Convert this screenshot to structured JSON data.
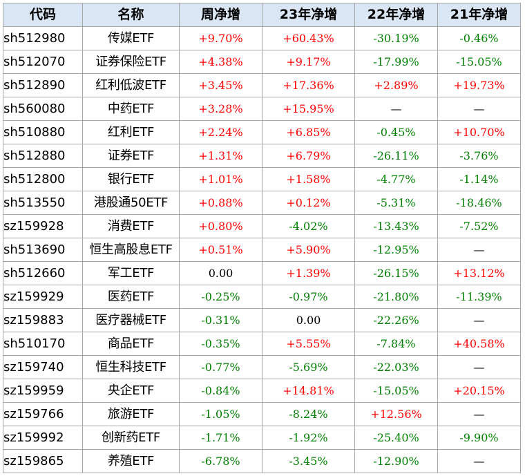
{
  "header": {
    "code": "代码",
    "name": "名称",
    "week": "周净增",
    "y23": "23年净增",
    "y22": "22年净增",
    "y21": "21年净增"
  },
  "colors": {
    "positive": "#ff0000",
    "negative": "#008000",
    "neutral": "#000000",
    "header_bg": "#dbe6f5"
  },
  "rows": [
    {
      "code": "sh512980",
      "name": "传媒ETF",
      "week": "+9.70%",
      "y23": "+60.43%",
      "y22": "-30.19%",
      "y21": "-0.46%"
    },
    {
      "code": "sh512070",
      "name": "证券保险ETF",
      "week": "+4.38%",
      "y23": "+9.17%",
      "y22": "-17.99%",
      "y21": "-15.05%"
    },
    {
      "code": "sh512890",
      "name": "红利低波ETF",
      "week": "+3.45%",
      "y23": "+17.36%",
      "y22": "+2.89%",
      "y21": "+19.73%"
    },
    {
      "code": "sh560080",
      "name": "中药ETF",
      "week": "+3.28%",
      "y23": "+15.95%",
      "y22": "—",
      "y21": "—"
    },
    {
      "code": "sh510880",
      "name": "红利ETF",
      "week": "+2.24%",
      "y23": "+6.85%",
      "y22": "-0.45%",
      "y21": "+10.70%"
    },
    {
      "code": "sh512880",
      "name": "证券ETF",
      "week": "+1.31%",
      "y23": "+6.79%",
      "y22": "-26.11%",
      "y21": "-3.76%"
    },
    {
      "code": "sh512800",
      "name": "银行ETF",
      "week": "+1.01%",
      "y23": "+1.58%",
      "y22": "-4.77%",
      "y21": "-1.14%"
    },
    {
      "code": "sh513550",
      "name": "港股通50ETF",
      "week": "+0.88%",
      "y23": "+0.12%",
      "y22": "-5.31%",
      "y21": "-18.46%"
    },
    {
      "code": "sz159928",
      "name": "消费ETF",
      "week": "+0.80%",
      "y23": "-4.02%",
      "y22": "-13.43%",
      "y21": "-7.52%"
    },
    {
      "code": "sh513690",
      "name": "恒生高股息ETF",
      "week": "+0.51%",
      "y23": "+5.90%",
      "y22": "-12.95%",
      "y21": "—"
    },
    {
      "code": "sh512660",
      "name": "军工ETF",
      "week": "0.00",
      "y23": "+1.39%",
      "y22": "-26.15%",
      "y21": "+13.12%"
    },
    {
      "code": "sz159929",
      "name": "医药ETF",
      "week": "-0.25%",
      "y23": "-0.97%",
      "y22": "-21.80%",
      "y21": "-11.39%"
    },
    {
      "code": "sz159883",
      "name": "医疗器械ETF",
      "week": "-0.31%",
      "y23": "0.00",
      "y22": "-22.26%",
      "y21": "—"
    },
    {
      "code": "sh510170",
      "name": "商品ETF",
      "week": "-0.35%",
      "y23": "+5.55%",
      "y22": "-7.84%",
      "y21": "+40.58%"
    },
    {
      "code": "sz159740",
      "name": "恒生科技ETF",
      "week": "-0.77%",
      "y23": "-5.69%",
      "y22": "-22.03%",
      "y21": "—"
    },
    {
      "code": "sz159959",
      "name": "央企ETF",
      "week": "-0.84%",
      "y23": "+14.81%",
      "y22": "-15.05%",
      "y21": "+20.15%"
    },
    {
      "code": "sz159766",
      "name": "旅游ETF",
      "week": "-1.05%",
      "y23": "-8.24%",
      "y22": "+12.56%",
      "y21": "—"
    },
    {
      "code": "sz159992",
      "name": "创新药ETF",
      "week": "-1.71%",
      "y23": "-1.92%",
      "y22": "-25.40%",
      "y21": "-9.90%"
    },
    {
      "code": "sz159865",
      "name": "养殖ETF",
      "week": "-6.78%",
      "y23": "-3.45%",
      "y22": "-12.90%",
      "y21": "—"
    }
  ]
}
